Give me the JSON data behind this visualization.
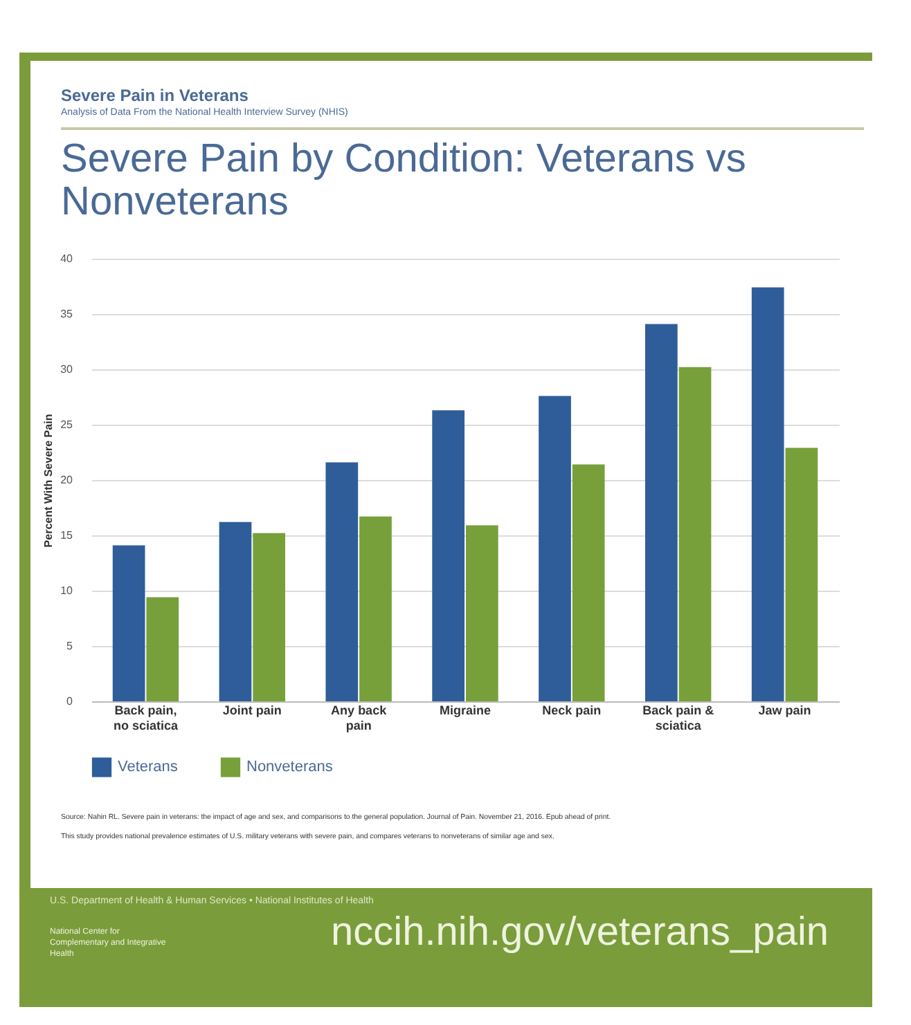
{
  "chart_data": {
    "type": "bar",
    "title": "Severe Pain by Condition: Veterans vs Nonveterans",
    "ylabel": "Percent With Severe Pain",
    "categories": [
      "Back pain, no sciatica",
      "Joint pain",
      "Any back pain",
      "Migraine",
      "Neck pain",
      "Back pain & sciatica",
      "Jaw pain"
    ],
    "series": [
      {
        "name": "Veterans",
        "color": "#2e5d9a",
        "values": [
          14.1,
          16.2,
          21.6,
          26.3,
          27.6,
          34.1,
          37.4
        ]
      },
      {
        "name": "Nonveterans",
        "color": "#77a03a",
        "values": [
          9.4,
          15.2,
          16.7,
          15.9,
          21.4,
          30.2,
          22.9
        ]
      }
    ],
    "ylim": [
      0,
      40
    ],
    "yticks": [
      0,
      5,
      10,
      15,
      20,
      25,
      30,
      35,
      40
    ],
    "grid": "y",
    "legend": "bottom",
    "annotations": [
      "Severe Pain in Veterans",
      "Analysis of Data From the National Health Interview Survey (NHIS)",
      "Source: Nahin RL. Severe pain in veterans: the impact of age and sex, and comparisons to the general population. Journal of Pain. November 21, 2016. Epub ahead of print.",
      "This study provides national prevalence estimates of U.S. military veterans with severe pain, and compares veterans to nonveterans of similar age and sex.",
      "U.S. Department of Health & Human Services • National Institutes of Health",
      "National Center for Complementary and Integrative Health",
      "nccih.nih.gov/veterans_pain"
    ]
  }
}
